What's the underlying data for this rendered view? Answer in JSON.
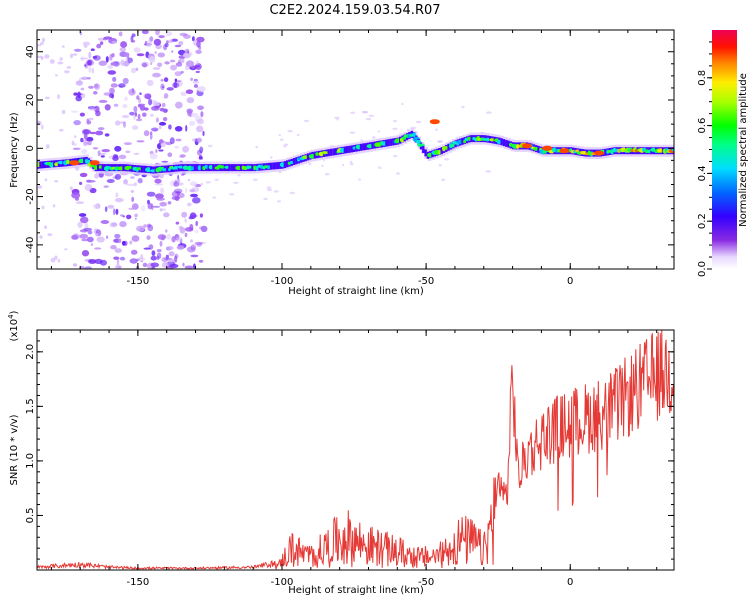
{
  "title": "C2E2.2024.159.03.54.R07",
  "colors": {
    "snr_line": "#e53935"
  },
  "chart_data": [
    {
      "type": "heatmap",
      "xlabel": "Height of straight line (km)",
      "ylabel": "Frequency (Hz)",
      "xlim": [
        -185,
        36
      ],
      "ylim": [
        -50,
        49
      ],
      "x_ticks": [
        -150,
        -100,
        -50,
        0
      ],
      "y_ticks": [
        -40,
        -20,
        0,
        20,
        40
      ],
      "colorbar": {
        "label": "Normalized spectral amplitude",
        "range": [
          0,
          1
        ],
        "ticks": [
          0.0,
          0.2,
          0.4,
          0.6,
          0.8
        ],
        "colormap": "rainbow"
      },
      "trace": {
        "x": [
          -185,
          -175,
          -168,
          -165,
          -155,
          -145,
          -135,
          -120,
          -110,
          -100,
          -90,
          -80,
          -70,
          -60,
          -55,
          -50,
          -45,
          -40,
          -35,
          -30,
          -25,
          -20,
          -15,
          -10,
          -5,
          0,
          5,
          10,
          15,
          20,
          25,
          30,
          36
        ],
        "y": [
          -7,
          -6,
          -5,
          -8,
          -8,
          -9,
          -8,
          -8,
          -8,
          -7,
          -3,
          -1,
          1,
          3,
          6,
          -3,
          -1,
          2,
          4,
          4,
          3,
          1,
          1,
          -1,
          -1,
          -1,
          -2,
          -2,
          -1,
          -1,
          -1,
          -1,
          -1
        ]
      }
    },
    {
      "type": "line",
      "xlabel": "Height of straight line (km)",
      "ylabel": "SNR (10 * v/v)",
      "multiplier_label": "(x10",
      "multiplier_exp": "4",
      "multiplier_close": ")",
      "xlim": [
        -185,
        36
      ],
      "ylim": [
        0,
        2.2
      ],
      "x_ticks": [
        -150,
        -100,
        -50,
        0
      ],
      "y_ticks": [
        0.5,
        1.0,
        1.5,
        2.0
      ],
      "envelope": {
        "x": [
          -185,
          -170,
          -160,
          -150,
          -130,
          -110,
          -101,
          -97,
          -90,
          -82,
          -78,
          -70,
          -60,
          -52,
          -45,
          -38,
          -33,
          -30,
          -26,
          -22,
          -20,
          -18,
          -15,
          -10,
          -5,
          0,
          5,
          10,
          15,
          20,
          25,
          30,
          36
        ],
        "y": [
          0.03,
          0.06,
          0.03,
          0.02,
          0.02,
          0.03,
          0.08,
          0.35,
          0.22,
          0.45,
          0.55,
          0.4,
          0.3,
          0.2,
          0.25,
          0.5,
          0.45,
          0.3,
          1.0,
          0.7,
          1.9,
          0.9,
          1.15,
          1.3,
          1.4,
          1.45,
          1.5,
          1.55,
          1.6,
          1.72,
          1.83,
          1.93,
          1.98
        ]
      }
    }
  ]
}
